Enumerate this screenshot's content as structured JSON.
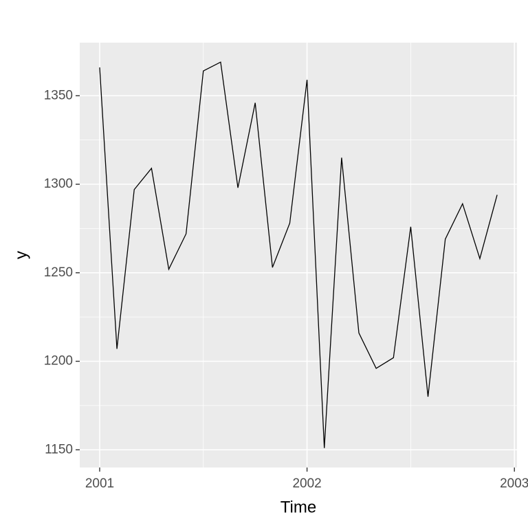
{
  "chart_data": {
    "type": "line",
    "x": [
      2001,
      2001.0833,
      2001.1667,
      2001.25,
      2001.3333,
      2001.4167,
      2001.5,
      2001.5833,
      2001.6667,
      2001.75,
      2001.8333,
      2001.9167,
      2002,
      2002.0833,
      2002.1667,
      2002.25,
      2002.3333,
      2002.4167,
      2002.5,
      2002.5833,
      2002.6667,
      2002.75,
      2002.8333,
      2002.9167
    ],
    "series": [
      {
        "name": "y",
        "color": "#000000",
        "values": [
          1366,
          1207,
          1297,
          1309,
          1252,
          1272,
          1364,
          1369,
          1298,
          1346,
          1253,
          1278,
          1359,
          1151,
          1315,
          1216,
          1196,
          1202,
          1276,
          1180,
          1269,
          1289,
          1258,
          1294
        ]
      }
    ],
    "xlabel": "Time",
    "ylabel": "y",
    "xlim": [
      2000.904,
      2003.0125
    ],
    "xticks": [
      2001,
      2002,
      2003
    ],
    "ylim": [
      1140,
      1380
    ],
    "yticks": [
      1150,
      1200,
      1250,
      1300,
      1350
    ],
    "grid": true
  }
}
